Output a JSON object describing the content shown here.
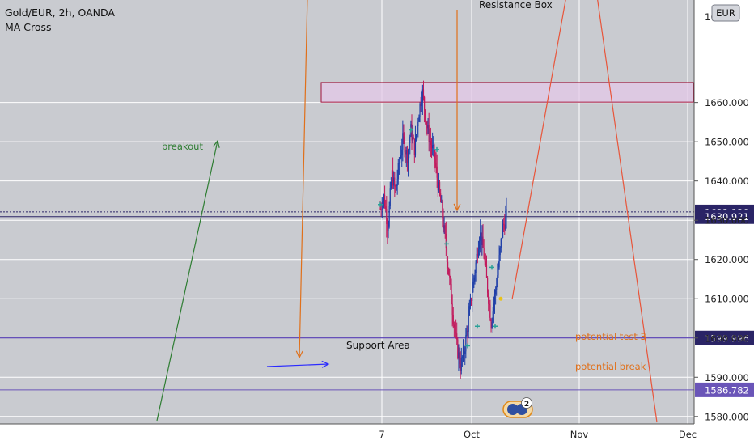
{
  "header": {
    "symbol": "Gold/EUR, 2h, OANDA",
    "indicator": "MA Cross",
    "currency_badge": "EUR"
  },
  "annotations": {
    "resistance_box": "Resistance Box",
    "support_area": "Support Area",
    "breakout": "breakout",
    "potential_test": "potential test 3",
    "potential_break": "potential break"
  },
  "colors": {
    "background": "#c9cbd0",
    "grid": "#ffffff",
    "candle_up": "#1e3ea8",
    "candle_down": "#c2185b",
    "resistance_box_fill": "#e3c8e8",
    "resistance_box_stroke": "#a0143c",
    "support_line": "#3b1fa8",
    "breakout_arrow": "#2e7d32",
    "down_arrows": "#e0701a",
    "red_lines": "#e8553a",
    "blue_arrow": "#2b2bff",
    "label_dark": "#2a2466",
    "label_purple": "#6a55b8"
  },
  "chart_data": {
    "type": "candlestick",
    "y_axis": {
      "ylim": [
        1578,
        1686
      ],
      "ticks": [
        1580,
        1590,
        1600,
        1610,
        1620,
        1630,
        1640,
        1650,
        1660
      ],
      "tick_labels": [
        "1580.000",
        "1590.000",
        "1600.000",
        "1610.000",
        "1620.000",
        "1630.000",
        "1640.000",
        "1650.000",
        "1660.000"
      ],
      "top_partial_label": "16"
    },
    "x_axis": {
      "tick_labels": [
        "7",
        "Oct",
        "Nov",
        "Dec"
      ]
    },
    "price_levels": [
      {
        "value": 1632.12,
        "label": "1632.120",
        "style": "dotted"
      },
      {
        "value": 1630.921,
        "label": "1630.921",
        "style": "solid"
      },
      {
        "value": 1599.996,
        "label": "1599.996",
        "style": "solid"
      },
      {
        "value": 1586.782,
        "label": "1586.782",
        "style": "solid"
      }
    ],
    "resistance_box": {
      "y_low": 1660.1,
      "y_high": 1665.1
    },
    "price_path": [
      1633,
      1636,
      1628,
      1642,
      1637,
      1645,
      1651,
      1646,
      1653,
      1648,
      1657,
      1663,
      1655,
      1650,
      1647,
      1640,
      1633,
      1625,
      1616,
      1606,
      1598,
      1593,
      1597,
      1604,
      1612,
      1619,
      1627,
      1622,
      1613,
      1604,
      1611,
      1619,
      1628,
      1631
    ],
    "event_badge_count": "2"
  }
}
